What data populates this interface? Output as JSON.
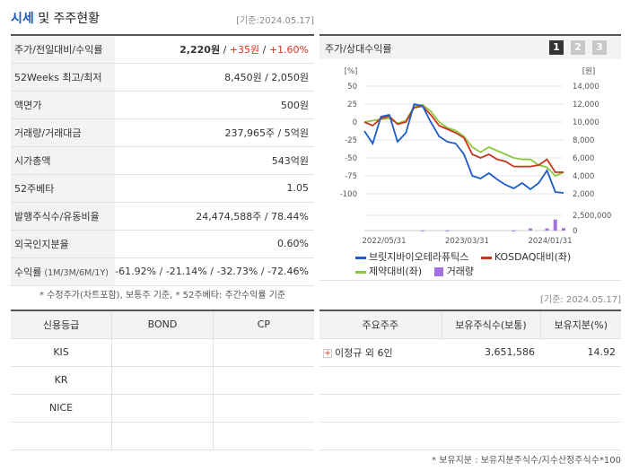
{
  "header": {
    "title_part1": "시세",
    "title_part2": " 및 주주현황",
    "date": "[기준:2024.05.17]"
  },
  "info_rows": [
    {
      "label": "주가/전일대비/수익률",
      "val_price": "2,220원",
      "val_sep1": " / ",
      "val_change": "+35원",
      "val_sep2": " / ",
      "val_rate": "+1.60%"
    },
    {
      "label": "52Weeks 최고/최저",
      "value": "8,450원 / 2,050원"
    },
    {
      "label": "액면가",
      "value": "500원"
    },
    {
      "label": "거래량/거래대금",
      "value": "237,965주 / 5억원"
    },
    {
      "label": "시가총액",
      "value": "543억원"
    },
    {
      "label": "52주베타",
      "value": "1.05"
    },
    {
      "label": "발행주식수/유동비율",
      "value": "24,474,588주 / 78.44%"
    },
    {
      "label": "외국인지분율",
      "value": "0.60%"
    },
    {
      "label": "수익률",
      "label_small": " (1M/3M/6M/1Y)",
      "r1": "-61.92%",
      "r2": "-21.14%",
      "r3": "-32.73%",
      "r4": "-72.46%",
      "sep": " / "
    }
  ],
  "info_note": "* 수정주가(차트포함), 보통주 기준, * 52주베타: 주간수익률 기준",
  "chart_panel": {
    "title": "주가/상대수익률",
    "pages": [
      "1",
      "2",
      "3"
    ],
    "legend": {
      "s1": "브릿지바이오테라퓨틱스",
      "s2": "KOSDAQ대비(좌)",
      "s3": "제약대비(좌)",
      "s4": "거래량"
    }
  },
  "colors": {
    "blue_series": "#1e5cc8",
    "red_series": "#c8361e",
    "green_series": "#8dc63f",
    "volume": "#a46fe0",
    "accent_blue": "#1b5ab8",
    "accent_red": "#e0301e"
  },
  "chart_data": {
    "type": "line",
    "left_axis": {
      "unit": "[%]",
      "ticks": [
        "50",
        "25",
        "0",
        "-25",
        "-50",
        "-75",
        "-100"
      ],
      "ylim": [
        -100,
        50
      ]
    },
    "right_axis": {
      "unit": "[원]",
      "ticks": [
        "14,000",
        "12,000",
        "10,000",
        "8,000",
        "6,000",
        "4,000",
        "2,000"
      ],
      "ylim": [
        2000,
        14000
      ]
    },
    "volume_axis": {
      "ticks": [
        "2,500,000",
        "0"
      ],
      "ylim": [
        0,
        2500000
      ]
    },
    "x_ticks": [
      "2022/05/31",
      "2023/03/31",
      "2024/01/31"
    ],
    "x_tick_idx": [
      0,
      10,
      20
    ],
    "n_points": 25,
    "series": [
      {
        "name": "브릿지바이오테라퓨틱스",
        "axis": "right",
        "values": [
          9000,
          7600,
          10600,
          10800,
          7800,
          8800,
          12000,
          11800,
          10000,
          8400,
          7800,
          7600,
          6400,
          4000,
          3700,
          4300,
          3600,
          3000,
          2600,
          3200,
          2500,
          3200,
          4600,
          2200,
          2100
        ]
      },
      {
        "name": "KOSDAQ대비(좌)",
        "axis": "left",
        "values": [
          0,
          -5,
          5,
          8,
          -3,
          0,
          20,
          22,
          10,
          -5,
          -10,
          -15,
          -22,
          -45,
          -50,
          -45,
          -52,
          -55,
          -62,
          -62,
          -62,
          -60,
          -52,
          -70,
          -70
        ]
      },
      {
        "name": "제약대비(좌)",
        "axis": "left",
        "values": [
          0,
          2,
          4,
          5,
          -2,
          2,
          22,
          24,
          15,
          0,
          -8,
          -12,
          -20,
          -35,
          -42,
          -35,
          -40,
          -45,
          -50,
          -52,
          -52,
          -60,
          -63,
          -75,
          -70
        ]
      }
    ],
    "volume": [
      0,
      0,
      0,
      0,
      0,
      0,
      0,
      30000,
      0,
      0,
      20000,
      0,
      0,
      0,
      0,
      0,
      0,
      0,
      20000,
      0,
      350000,
      0,
      350000,
      1800000,
      400000
    ]
  },
  "date2": "[기준: 2024.05.17]",
  "credit": {
    "headers": [
      "신용등급",
      "BOND",
      "CP"
    ],
    "rows": [
      [
        "KIS",
        "",
        ""
      ],
      [
        "KR",
        "",
        ""
      ],
      [
        "NICE",
        "",
        ""
      ],
      [
        "",
        "",
        ""
      ]
    ]
  },
  "holders": {
    "headers": [
      "주요주주",
      "보유주식수(보통)",
      "보유지분(%)"
    ],
    "rows": [
      [
        "이정규 외 6인",
        "3,651,586",
        "14.92"
      ],
      [
        "",
        "",
        ""
      ],
      [
        "",
        "",
        ""
      ],
      [
        "",
        "",
        ""
      ]
    ],
    "plus_icon": "+"
  },
  "holders_note": "* 보유지분 : 보유지분주식수/지수산정주식수*100"
}
